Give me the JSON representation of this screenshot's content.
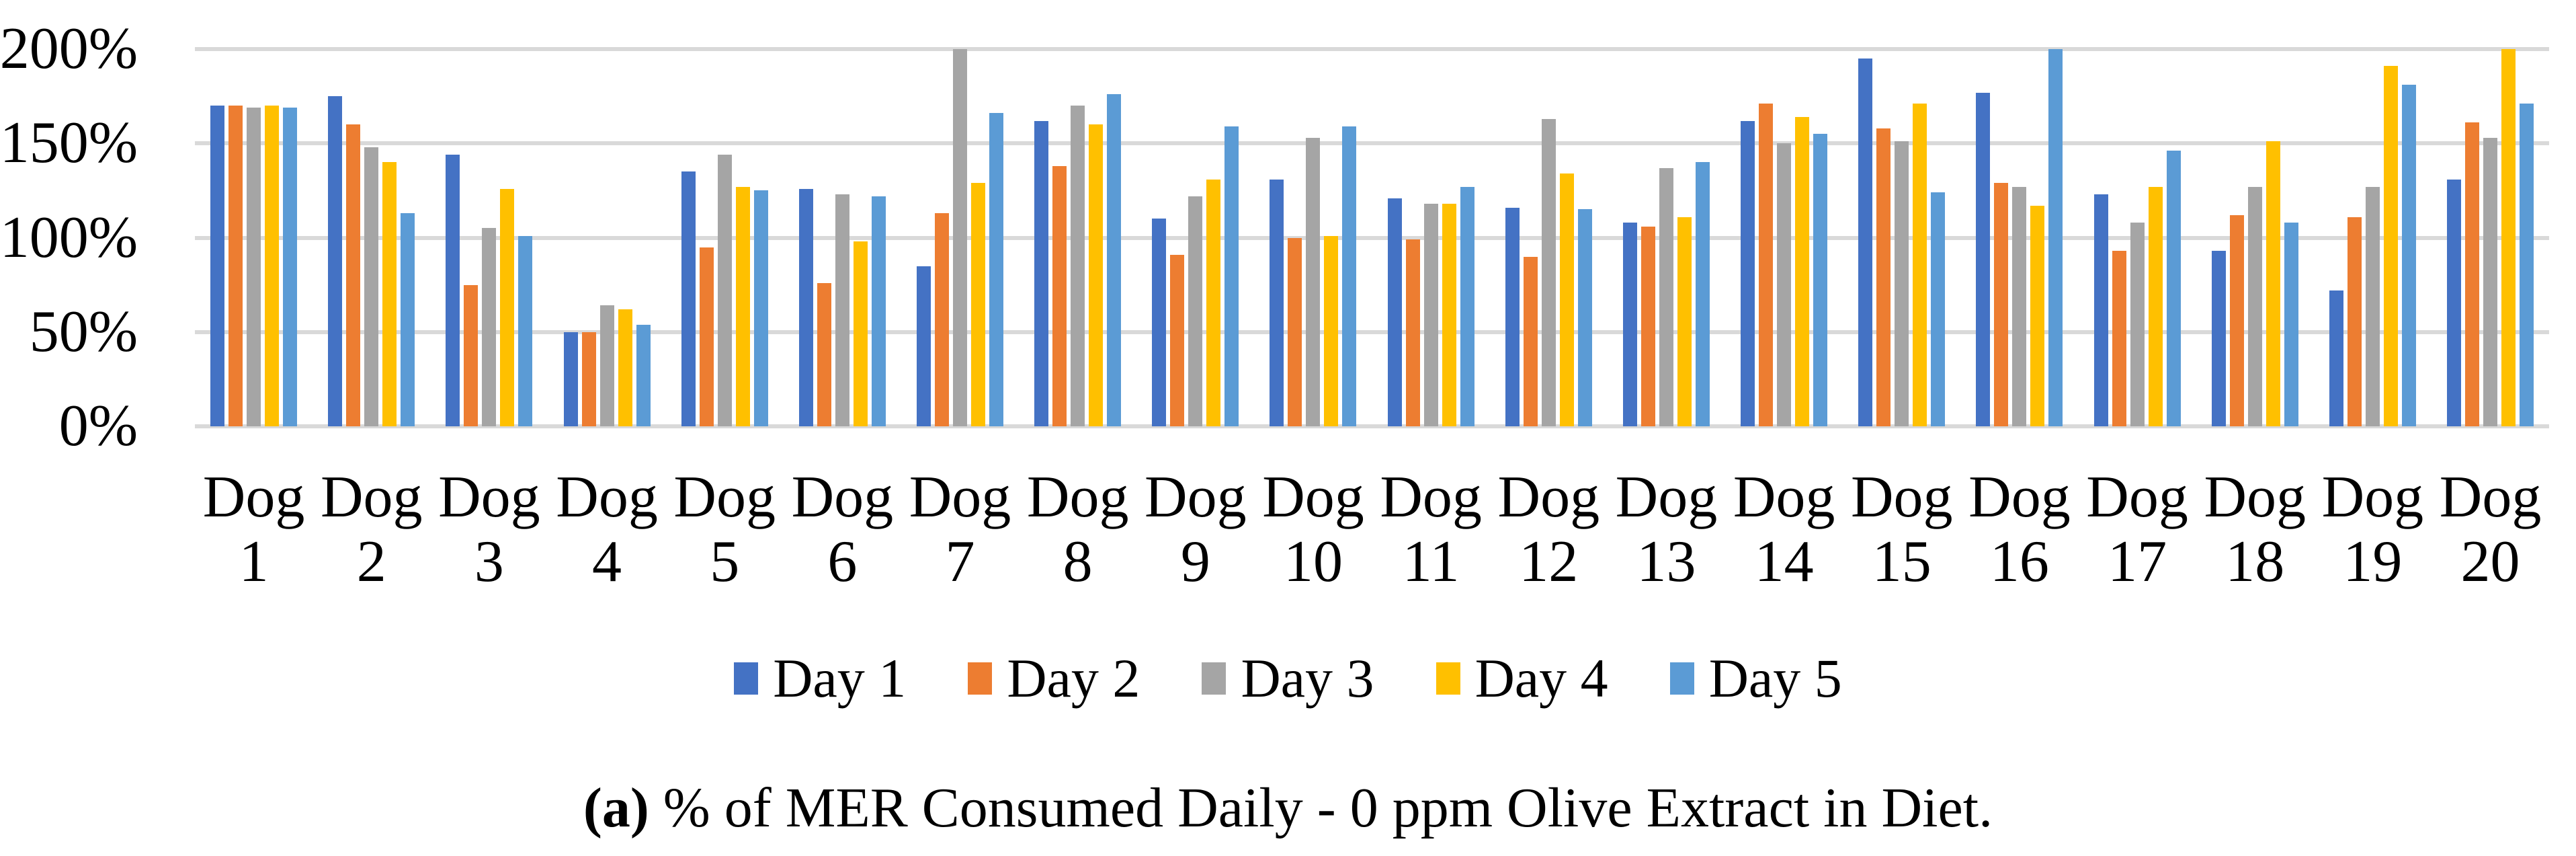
{
  "chart_data": {
    "type": "bar",
    "title": "",
    "xlabel": "",
    "ylabel": "",
    "ylim": [
      0,
      200
    ],
    "yticks": [
      0,
      50,
      100,
      150,
      200
    ],
    "ytick_labels": [
      "0%",
      "50%",
      "100%",
      "150%",
      "200%"
    ],
    "grid": true,
    "legend_position": "bottom",
    "gridline_color": "#D9D9D9",
    "categories": [
      "Dog 1",
      "Dog 2",
      "Dog 3",
      "Dog 4",
      "Dog 5",
      "Dog 6",
      "Dog 7",
      "Dog 8",
      "Dog 9",
      "Dog 10",
      "Dog 11",
      "Dog 12",
      "Dog 13",
      "Dog 14",
      "Dog 15",
      "Dog 16",
      "Dog 17",
      "Dog 18",
      "Dog 19",
      "Dog 20"
    ],
    "series": [
      {
        "name": "Day 1",
        "color": "#4472C4",
        "values": [
          170,
          175,
          144,
          50,
          135,
          126,
          85,
          162,
          110,
          131,
          121,
          116,
          108,
          162,
          195,
          177,
          123,
          93,
          72,
          131
        ]
      },
      {
        "name": "Day 2",
        "color": "#ED7D31",
        "values": [
          170,
          160,
          75,
          50,
          95,
          76,
          113,
          138,
          91,
          100,
          99,
          90,
          106,
          171,
          158,
          129,
          93,
          112,
          111,
          161
        ]
      },
      {
        "name": "Day 3",
        "color": "#A5A5A5",
        "values": [
          169,
          148,
          105,
          64,
          144,
          123,
          200,
          170,
          122,
          153,
          118,
          163,
          137,
          150,
          151,
          127,
          108,
          127,
          127,
          153
        ]
      },
      {
        "name": "Day 4",
        "color": "#FFC000",
        "values": [
          170,
          140,
          126,
          62,
          127,
          98,
          129,
          160,
          131,
          101,
          118,
          134,
          111,
          164,
          171,
          117,
          127,
          151,
          191,
          200
        ]
      },
      {
        "name": "Day 5",
        "color": "#5B9BD5",
        "values": [
          169,
          113,
          101,
          54,
          125,
          122,
          166,
          176,
          159,
          159,
          127,
          115,
          140,
          155,
          124,
          200,
          146,
          108,
          181,
          171
        ]
      }
    ]
  },
  "caption": {
    "label": "(a)",
    "text": " % of MER Consumed Daily - 0 ppm Olive Extract in Diet."
  }
}
